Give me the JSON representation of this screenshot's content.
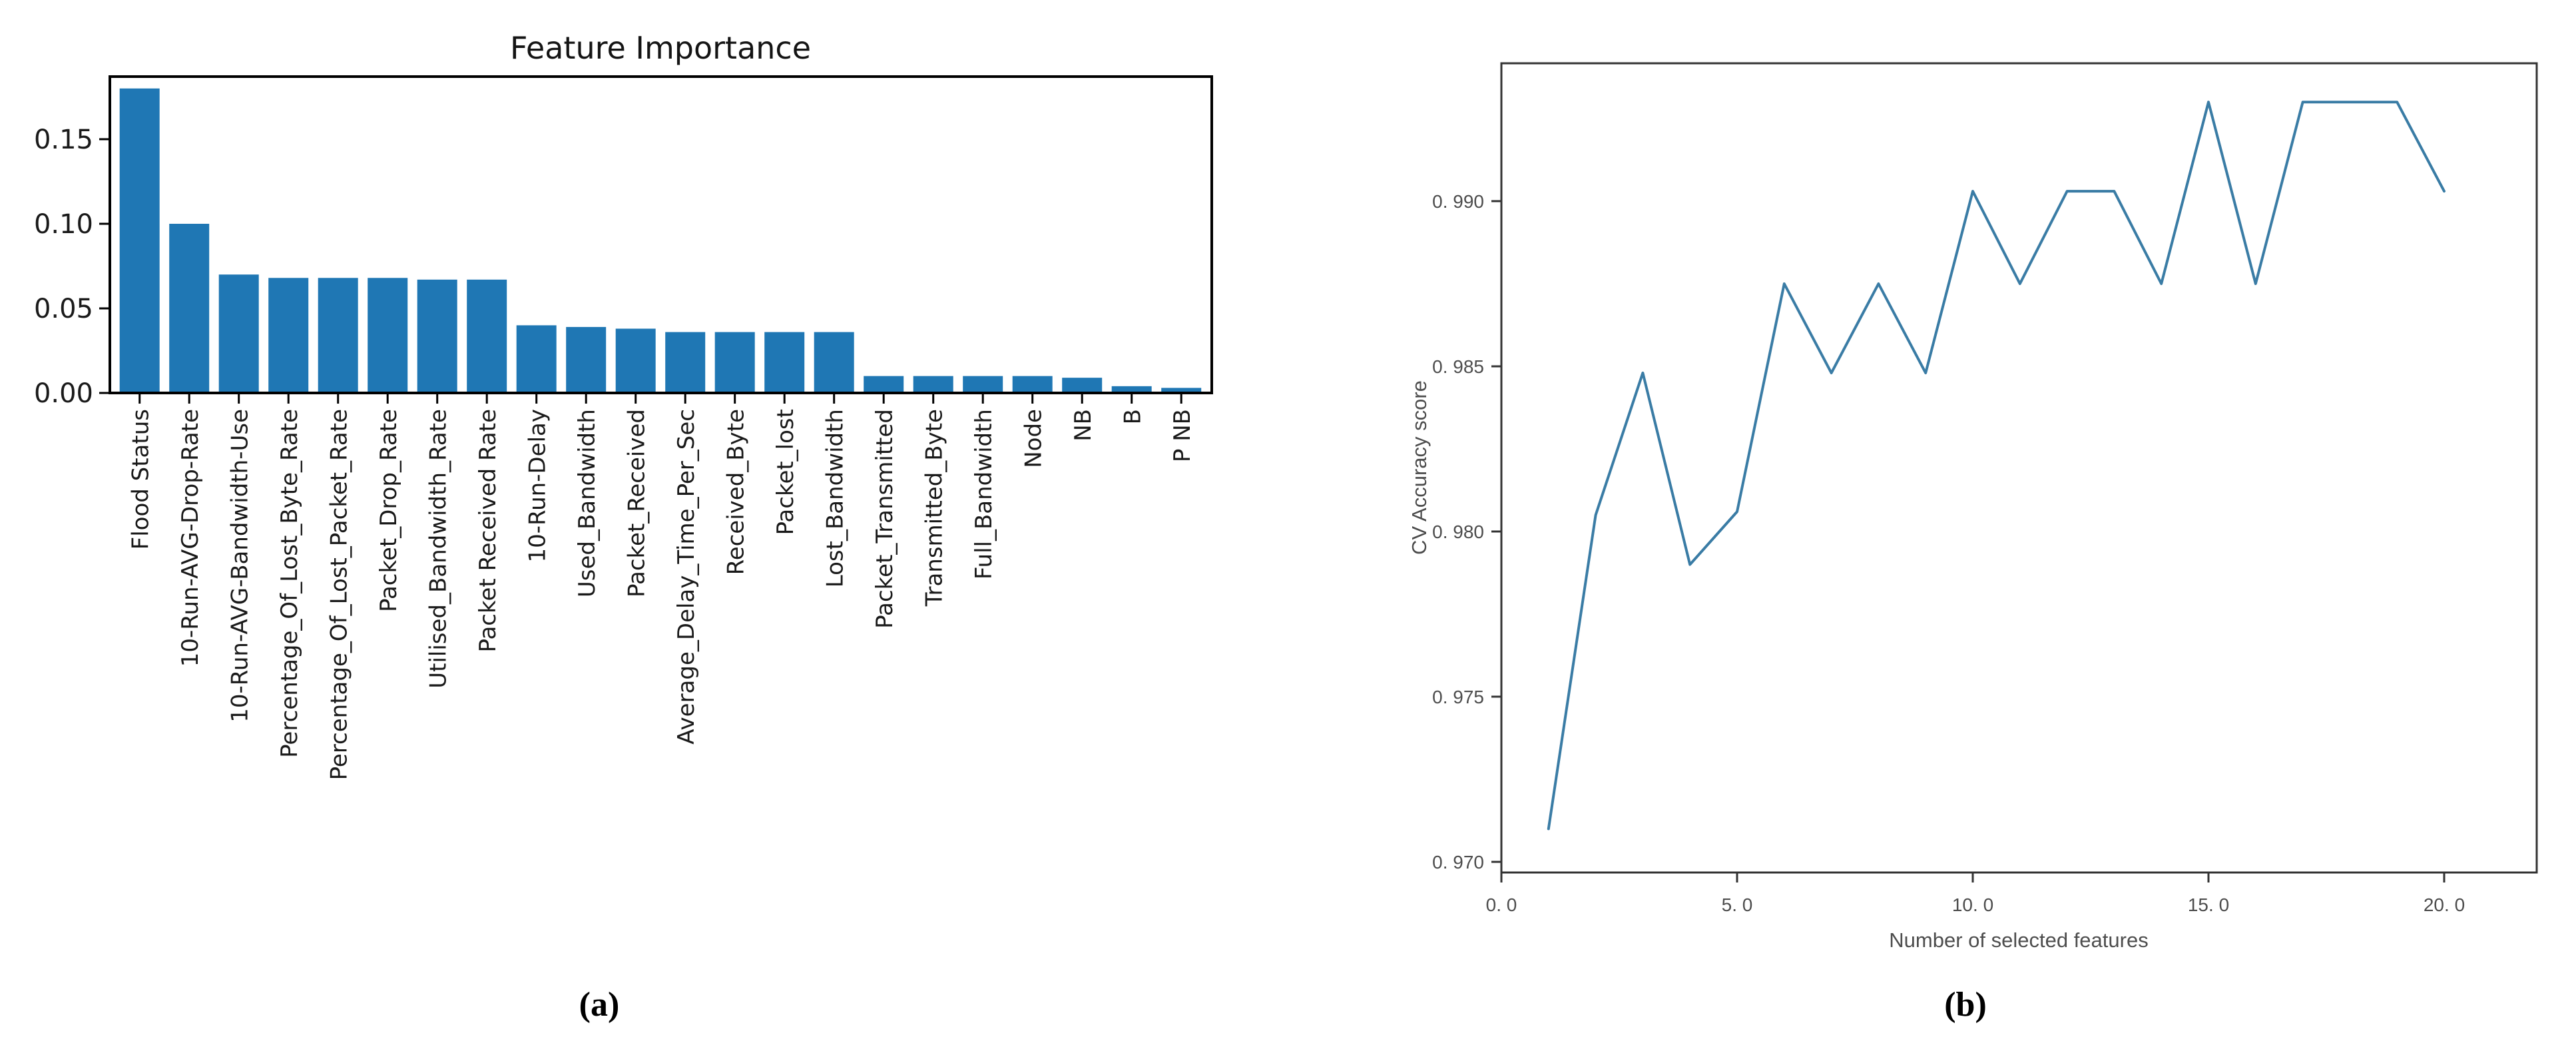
{
  "figure": {
    "caption_a": "(a)",
    "caption_b": "(b)",
    "background": "#ffffff"
  },
  "colors": {
    "bar_fill": "#1f77b4",
    "line_stroke": "#3a7ca5",
    "bar_axis": "#000000",
    "line_axis": "#333333"
  },
  "chart_data": [
    {
      "type": "bar",
      "title": "Feature Importance",
      "xlabel": "",
      "ylabel": "",
      "categories": [
        "Flood Status",
        "10-Run-AVG-Drop-Rate",
        "10-Run-AVG-Bandwidth-Use",
        "Percentage_Of_Lost_Byte_Rate",
        "Percentage_Of_Lost_Packet_Rate",
        "Packet_Drop_Rate",
        "Utilised_Bandwidth_Rate",
        "Packet Received Rate",
        "10-Run-Delay",
        "Used_Bandwidth",
        "Packet_Received",
        "Average_Delay_Time_Per_Sec",
        "Received_Byte",
        "Packet_lost",
        "Lost_Bandwidth",
        "Packet_Transmitted",
        "Transmitted_Byte",
        "Full_Bandwidth",
        "Node",
        "NB",
        "B",
        "P NB"
      ],
      "values": [
        0.18,
        0.1,
        0.07,
        0.068,
        0.068,
        0.068,
        0.067,
        0.067,
        0.04,
        0.039,
        0.038,
        0.036,
        0.036,
        0.036,
        0.036,
        0.01,
        0.01,
        0.01,
        0.01,
        0.009,
        0.004,
        0.003
      ],
      "yticks": [
        0,
        0.05,
        0.1,
        0.15
      ],
      "ytick_labels": [
        "0.00",
        "0.05",
        "0.10",
        "0.15"
      ],
      "ylim": [
        0,
        0.187
      ],
      "grid": false,
      "legend": "none",
      "bar_color": "#1f77b4"
    },
    {
      "type": "line",
      "title": "",
      "xlabel": "Number of selected features",
      "ylabel": "CV Accuracy score",
      "x": [
        1,
        2,
        3,
        4,
        5,
        6,
        7,
        8,
        9,
        10,
        11,
        12,
        13,
        14,
        15,
        16,
        17,
        18,
        19,
        20
      ],
      "y": [
        0.971,
        0.9805,
        0.9848,
        0.979,
        0.9806,
        0.9875,
        0.9848,
        0.9875,
        0.9848,
        0.9903,
        0.9875,
        0.9903,
        0.9903,
        0.9875,
        0.993,
        0.9875,
        0.993,
        0.993,
        0.993,
        0.9903
      ],
      "xticks": [
        0,
        5,
        10,
        15,
        20
      ],
      "xtick_labels": [
        "0. 0",
        "5. 0",
        "10. 0",
        "15. 0",
        "20. 0"
      ],
      "yticks": [
        0.97,
        0.975,
        0.98,
        0.985,
        0.99
      ],
      "ytick_labels": [
        "0. 970",
        "0. 975",
        "0. 980",
        "0. 985",
        "0. 990"
      ],
      "xlim": [
        0,
        21.96
      ],
      "ylim": [
        0.9691,
        0.9942
      ],
      "grid": false,
      "legend": "none",
      "line_color": "#3a7ca5"
    }
  ]
}
